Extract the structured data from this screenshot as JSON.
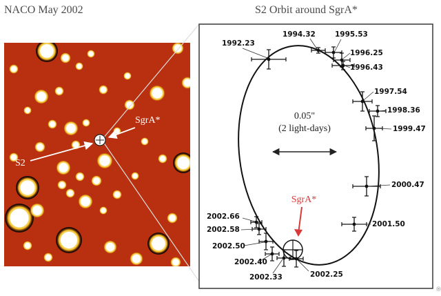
{
  "header": {
    "left_title": "NACO May 2002",
    "right_title": "S2 Orbit around SgrA*"
  },
  "image_panel": {
    "background_color": "#b8300f",
    "sgra_label": "SgrA*",
    "s2_label": "S2"
  },
  "orbit_panel": {
    "scale_value": "0.05\"",
    "scale_caption": "(2 light-days)",
    "sgra_label": "SgrA*",
    "sgra_color": "#d83a3a",
    "epochs": [
      "1992.23",
      "1994.32",
      "1995.53",
      "1996.25",
      "1996.43",
      "1997.54",
      "1998.36",
      "1999.47",
      "2000.47",
      "2001.50",
      "2002.25",
      "2002.33",
      "2002.40",
      "2002.50",
      "2002.58",
      "2002.66"
    ]
  },
  "watermark": "®"
}
